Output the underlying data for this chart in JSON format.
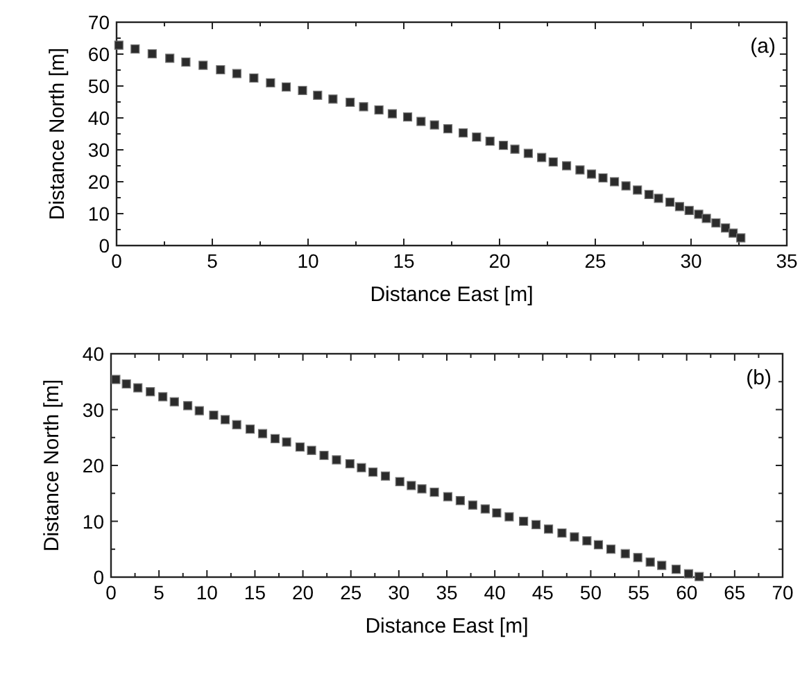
{
  "chart_data": [
    {
      "type": "scatter",
      "xlabel": "Distance East [m]",
      "ylabel": "Distance North [m]",
      "annotations": [
        "(a)"
      ],
      "marker": "square",
      "xlim": [
        0,
        35
      ],
      "xticks": [
        0,
        5,
        10,
        15,
        20,
        25,
        30,
        35
      ],
      "ylim": [
        0,
        70
      ],
      "yticks": [
        0,
        10,
        20,
        30,
        40,
        50,
        60,
        70
      ],
      "series": [
        {
          "color": "#2b2b2b",
          "x": [
            0.12,
            0.97,
            1.86,
            2.78,
            3.62,
            4.52,
            5.43,
            6.28,
            7.17,
            8.04,
            8.86,
            9.71,
            10.5,
            11.3,
            12.2,
            12.9,
            13.7,
            14.4,
            15.2,
            15.9,
            16.6,
            17.3,
            18.1,
            18.8,
            19.5,
            20.2,
            20.8,
            21.5,
            22.2,
            22.8,
            23.5,
            24.2,
            24.8,
            25.4,
            26.0,
            26.6,
            27.2,
            27.8,
            28.3,
            28.9,
            29.4,
            29.9,
            30.4,
            30.8,
            31.3,
            31.8,
            32.2,
            32.6
          ],
          "values": [
            62.8,
            61.6,
            60.1,
            58.7,
            57.5,
            56.5,
            55.1,
            53.9,
            52.5,
            51.0,
            49.7,
            48.6,
            47.1,
            45.9,
            44.9,
            43.5,
            42.5,
            41.3,
            40.3,
            38.9,
            37.8,
            36.6,
            35.3,
            34.0,
            32.7,
            31.4,
            30.2,
            28.9,
            27.6,
            26.2,
            25.0,
            23.7,
            22.4,
            21.2,
            20.0,
            18.7,
            17.4,
            16.0,
            14.8,
            13.6,
            12.2,
            11.0,
            9.8,
            8.5,
            7.1,
            5.5,
            3.9,
            2.4
          ]
        }
      ]
    },
    {
      "type": "scatter",
      "xlabel": "Distance East [m]",
      "ylabel": "Distance North [m]",
      "annotations": [
        "(b)"
      ],
      "marker": "square",
      "xlim": [
        0,
        70
      ],
      "xticks": [
        0,
        5,
        10,
        15,
        20,
        25,
        30,
        35,
        40,
        45,
        50,
        55,
        60,
        65,
        70
      ],
      "ylim": [
        0,
        40
      ],
      "yticks": [
        0,
        10,
        20,
        30,
        40
      ],
      "series": [
        {
          "color": "#2b2b2b",
          "x": [
            0.5,
            1.6,
            2.8,
            4.1,
            5.4,
            6.6,
            8.0,
            9.2,
            10.7,
            11.9,
            13.1,
            14.5,
            15.8,
            17.1,
            18.3,
            19.7,
            20.9,
            22.2,
            23.5,
            24.9,
            26.1,
            27.3,
            28.6,
            30.1,
            31.3,
            32.4,
            33.7,
            35.1,
            36.4,
            37.7,
            39.0,
            40.2,
            41.5,
            43.0,
            44.3,
            45.6,
            47.0,
            48.3,
            49.6,
            50.8,
            52.1,
            53.6,
            54.9,
            56.2,
            57.4,
            58.9,
            60.2,
            61.3
          ],
          "values": [
            35.4,
            34.6,
            33.9,
            33.2,
            32.3,
            31.4,
            30.7,
            29.8,
            29.0,
            28.2,
            27.3,
            26.5,
            25.7,
            24.8,
            24.2,
            23.3,
            22.7,
            21.8,
            21.0,
            20.3,
            19.6,
            18.8,
            18.1,
            17.1,
            16.4,
            15.8,
            15.2,
            14.4,
            13.7,
            12.9,
            12.2,
            11.5,
            10.8,
            10.0,
            9.4,
            8.6,
            7.9,
            7.2,
            6.5,
            5.8,
            5.0,
            4.2,
            3.5,
            2.7,
            2.1,
            1.4,
            0.6,
            0.1
          ]
        }
      ]
    }
  ]
}
